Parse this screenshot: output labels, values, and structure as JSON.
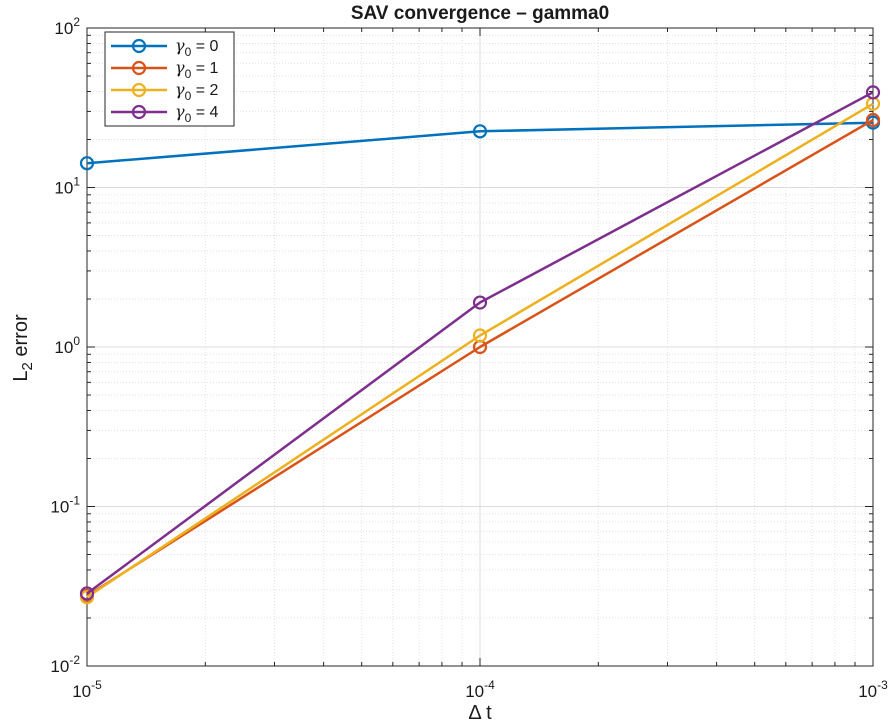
{
  "chart_data": {
    "type": "line",
    "title": "SAV convergence – gamma0",
    "xlabel": "Δ t",
    "ylabel_main": "L",
    "ylabel_sub": "2",
    "ylabel_rest": " error",
    "xscale": "log",
    "yscale": "log",
    "xlim": [
      1e-05,
      0.001
    ],
    "ylim": [
      0.01,
      100
    ],
    "grid": true,
    "minor_grid": true,
    "legend_position": "top-left",
    "x_ticks": [
      {
        "value": 1e-05,
        "base": "10",
        "exp": "-5"
      },
      {
        "value": 0.0001,
        "base": "10",
        "exp": "-4"
      },
      {
        "value": 0.001,
        "base": "10",
        "exp": "-3"
      }
    ],
    "y_ticks": [
      {
        "value": 0.01,
        "base": "10",
        "exp": "-2"
      },
      {
        "value": 0.1,
        "base": "10",
        "exp": "-1"
      },
      {
        "value": 1,
        "base": "10",
        "exp": "0"
      },
      {
        "value": 10,
        "base": "10",
        "exp": "1"
      },
      {
        "value": 100,
        "base": "10",
        "exp": "2"
      }
    ],
    "x": [
      1e-05,
      0.0001,
      0.001
    ],
    "series": [
      {
        "name": "γ0 = 0",
        "symbol": "γ",
        "sub": "0",
        "rest": " = 0",
        "color": "#0072BD",
        "values": [
          14.2,
          22.5,
          25.5
        ]
      },
      {
        "name": "γ0 = 1",
        "symbol": "γ",
        "sub": "0",
        "rest": " = 1",
        "color": "#D95319",
        "values": [
          0.0275,
          1.0,
          26.5
        ]
      },
      {
        "name": "γ0 = 2",
        "symbol": "γ",
        "sub": "0",
        "rest": " = 2",
        "color": "#EDB120",
        "values": [
          0.027,
          1.18,
          33.5
        ]
      },
      {
        "name": "γ0 = 4",
        "symbol": "γ",
        "sub": "0",
        "rest": " = 4",
        "color": "#7E2F8E",
        "values": [
          0.0285,
          1.9,
          39.5
        ]
      }
    ]
  }
}
